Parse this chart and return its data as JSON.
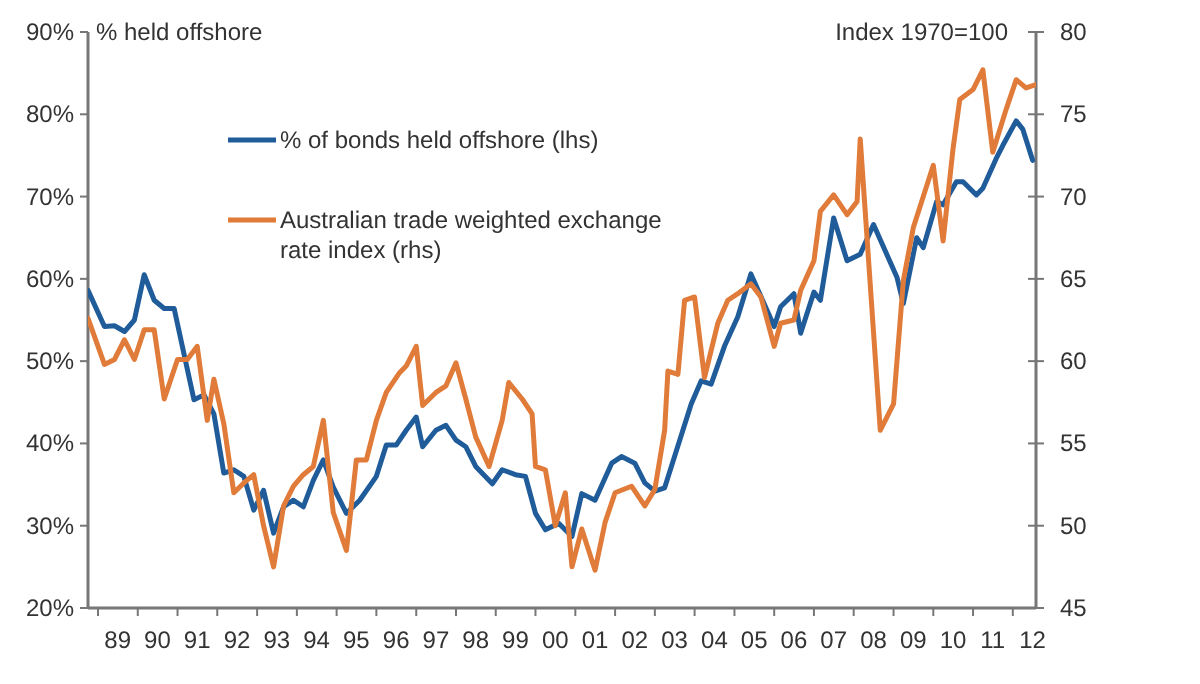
{
  "chart_data": {
    "type": "line",
    "ylabel": "% held offshore",
    "y2label": "Index 1970=100",
    "legend": "top left",
    "grid": false,
    "line_style": "solid",
    "marker": "none",
    "xlim": [
      "1988-10",
      "2012-08"
    ],
    "xticks": [
      {
        "value": "1989-01",
        "label": null
      },
      {
        "value": "1990-01",
        "label": null
      },
      {
        "value": "1991-01",
        "label": null
      },
      {
        "value": "1992-01",
        "label": null
      },
      {
        "value": "1993-01",
        "label": null
      },
      {
        "value": "1994-01",
        "label": null
      },
      {
        "value": "1995-01",
        "label": null
      },
      {
        "value": "1996-01",
        "label": null
      },
      {
        "value": "1997-01",
        "label": null
      },
      {
        "value": "1998-01",
        "label": null
      },
      {
        "value": "1999-01",
        "label": null
      },
      {
        "value": "2000-01",
        "label": null
      },
      {
        "value": "2001-01",
        "label": null
      },
      {
        "value": "2002-01",
        "label": null
      },
      {
        "value": "2003-01",
        "label": null
      },
      {
        "value": "2004-01",
        "label": null
      },
      {
        "value": "2005-01",
        "label": null
      },
      {
        "value": "2006-01",
        "label": null
      },
      {
        "value": "2007-01",
        "label": null
      },
      {
        "value": "2008-01",
        "label": null
      },
      {
        "value": "2009-01",
        "label": null
      },
      {
        "value": "2010-01",
        "label": null
      },
      {
        "value": "2011-01",
        "label": null
      },
      {
        "value": "2012-01",
        "label": null
      },
      {
        "value": "1989-07",
        "label": "89"
      },
      {
        "value": "1990-07",
        "label": "90"
      },
      {
        "value": "1991-07",
        "label": "91"
      },
      {
        "value": "1992-07",
        "label": "92"
      },
      {
        "value": "1993-07",
        "label": "93"
      },
      {
        "value": "1994-07",
        "label": "94"
      },
      {
        "value": "1995-07",
        "label": "95"
      },
      {
        "value": "1996-07",
        "label": "96"
      },
      {
        "value": "1997-07",
        "label": "97"
      },
      {
        "value": "1998-07",
        "label": "98"
      },
      {
        "value": "1999-07",
        "label": "99"
      },
      {
        "value": "2000-07",
        "label": "00"
      },
      {
        "value": "2001-07",
        "label": "01"
      },
      {
        "value": "2002-07",
        "label": "02"
      },
      {
        "value": "2003-07",
        "label": "03"
      },
      {
        "value": "2004-07",
        "label": "04"
      },
      {
        "value": "2005-07",
        "label": "05"
      },
      {
        "value": "2006-07",
        "label": "06"
      },
      {
        "value": "2007-07",
        "label": "07"
      },
      {
        "value": "2008-07",
        "label": "08"
      },
      {
        "value": "2009-07",
        "label": "09"
      },
      {
        "value": "2010-07",
        "label": "10"
      },
      {
        "value": "2011-07",
        "label": "11"
      },
      {
        "value": "2012-07",
        "label": "12"
      }
    ],
    "ylim": [
      20,
      90
    ],
    "yticks": [
      {
        "value": 20,
        "label": "20%"
      },
      {
        "value": 30,
        "label": "30%"
      },
      {
        "value": 40,
        "label": "40%"
      },
      {
        "value": 50,
        "label": "50%"
      },
      {
        "value": 60,
        "label": "60%"
      },
      {
        "value": 70,
        "label": "70%"
      },
      {
        "value": 80,
        "label": "80%"
      },
      {
        "value": 90,
        "label": "90%"
      }
    ],
    "y2lim": [
      45,
      80
    ],
    "y2ticks": [
      45,
      50,
      55,
      60,
      65,
      70,
      75,
      80
    ],
    "series": [
      {
        "name": "% of bonds held offshore (lhs)",
        "color": "#1f5c99",
        "x": [
          "1988-10",
          "1989-03",
          "1989-06",
          "1989-09",
          "1989-12",
          "1990-03",
          "1990-06",
          "1990-09",
          "1990-12",
          "1991-03",
          "1991-06",
          "1991-09",
          "1991-12",
          "1992-03",
          "1992-06",
          "1992-09",
          "1992-12",
          "1993-03",
          "1993-06",
          "1993-09",
          "1993-12",
          "1994-03",
          "1994-06",
          "1994-09",
          "1994-12",
          "1995-04",
          "1995-08",
          "1996-01",
          "1996-04",
          "1996-07",
          "1996-10",
          "1997-01",
          "1997-03",
          "1997-07",
          "1997-10",
          "1998-01",
          "1998-04",
          "1998-07",
          "1998-12",
          "1999-03",
          "1999-07",
          "1999-10",
          "2000-01",
          "2000-04",
          "2000-08",
          "2000-12",
          "2001-03",
          "2001-07",
          "2001-12",
          "2002-03",
          "2002-07",
          "2002-10",
          "2003-01",
          "2003-04",
          "2003-07",
          "2003-12",
          "2004-03",
          "2004-06",
          "2004-10",
          "2005-02",
          "2005-06",
          "2006-01",
          "2006-03",
          "2006-07",
          "2006-09",
          "2007-01",
          "2007-03",
          "2007-07",
          "2007-11",
          "2008-03",
          "2008-07",
          "2009-02",
          "2009-04",
          "2009-08",
          "2009-10",
          "2010-02",
          "2010-04",
          "2010-08",
          "2010-10",
          "2011-02",
          "2011-04",
          "2011-08",
          "2011-10",
          "2012-02",
          "2012-04",
          "2012-07"
        ],
        "values": [
          58.6,
          54.2,
          54.3,
          53.6,
          55,
          60.5,
          57.4,
          56.4,
          56.4,
          50.9,
          45.3,
          45.9,
          43.6,
          36.4,
          36.8,
          36,
          31.9,
          34.3,
          29.1,
          32.3,
          33.1,
          32.3,
          35.5,
          38,
          34.7,
          31.5,
          33.1,
          36,
          39.8,
          39.8,
          41.6,
          43.2,
          39.6,
          41.6,
          42.2,
          40.4,
          39.6,
          37.2,
          35.1,
          36.8,
          36.2,
          36,
          31.5,
          29.5,
          30.3,
          28.7,
          33.9,
          33.1,
          37.6,
          38.4,
          37.6,
          35.2,
          34.2,
          34.6,
          38.4,
          44.8,
          47.6,
          47.2,
          51.8,
          55.4,
          60.6,
          54.2,
          56.6,
          58.2,
          53.4,
          58.4,
          57.4,
          67.4,
          62.2,
          63,
          66.6,
          60.2,
          57,
          65,
          63.8,
          69.4,
          69,
          71.8,
          71.8,
          70.2,
          71,
          74.6,
          76.2,
          79.2,
          78.2,
          74.4
        ]
      },
      {
        "name": "Australian trade weighted exchange rate index (rhs)",
        "color": "#e07b39",
        "axis": "y2",
        "x": [
          "1988-10",
          "1989-03",
          "1989-06",
          "1989-09",
          "1989-12",
          "1990-03",
          "1990-06",
          "1990-09",
          "1991-01",
          "1991-04",
          "1991-07",
          "1991-10",
          "1991-12",
          "1992-03",
          "1992-06",
          "1992-09",
          "1992-12",
          "1993-03",
          "1993-06",
          "1993-09",
          "1993-12",
          "1994-03",
          "1994-06",
          "1994-09",
          "1994-12",
          "1995-04",
          "1995-07",
          "1995-10",
          "1996-01",
          "1996-04",
          "1996-08",
          "1996-10",
          "1997-01",
          "1997-03",
          "1997-07",
          "1997-10",
          "1998-01",
          "1998-04",
          "1998-07",
          "1998-11",
          "1999-03",
          "1999-05",
          "1999-09",
          "1999-12",
          "2000-01",
          "2000-04",
          "2000-07",
          "2000-10",
          "2000-12",
          "2001-03",
          "2001-07",
          "2001-10",
          "2002-01",
          "2002-06",
          "2002-10",
          "2003-01",
          "2003-04",
          "2003-05",
          "2003-08",
          "2003-10",
          "2004-01",
          "2004-04",
          "2004-08",
          "2004-11",
          "2005-02",
          "2005-06",
          "2005-09",
          "2006-01",
          "2006-03",
          "2006-07",
          "2006-09",
          "2007-01",
          "2007-03",
          "2007-07",
          "2007-11",
          "2008-02",
          "2008-03",
          "2008-09",
          "2009-01",
          "2009-04",
          "2009-07",
          "2010-01",
          "2010-04",
          "2010-07",
          "2010-09",
          "2011-01",
          "2011-04",
          "2011-07",
          "2011-11",
          "2012-02",
          "2012-05",
          "2012-08"
        ],
        "values": [
          62.6,
          59.8,
          60.1,
          61.3,
          60.1,
          61.9,
          61.9,
          57.7,
          60.1,
          60.1,
          60.9,
          56.4,
          58.9,
          56.2,
          52,
          52.6,
          53.1,
          50,
          47.5,
          51.2,
          52.4,
          53.1,
          53.6,
          56.4,
          50.8,
          48.5,
          54,
          54,
          56.4,
          58.1,
          59.3,
          59.7,
          60.9,
          57.3,
          58.1,
          58.5,
          59.9,
          57.7,
          55.4,
          53.6,
          56.4,
          58.7,
          57.7,
          56.8,
          53.6,
          53.4,
          50,
          52,
          47.5,
          49.8,
          47.3,
          50.2,
          52,
          52.4,
          51.2,
          52.2,
          55.8,
          59.4,
          59.2,
          63.7,
          63.9,
          59,
          62.3,
          63.7,
          64.1,
          64.7,
          63.9,
          60.9,
          62.3,
          62.5,
          64.3,
          66.1,
          69.1,
          70.1,
          68.9,
          69.7,
          73.5,
          55.8,
          57.4,
          64.9,
          68.1,
          71.9,
          67.3,
          72.9,
          75.9,
          76.5,
          77.7,
          72.7,
          75.3,
          77.1,
          76.6,
          76.8
        ]
      }
    ]
  }
}
